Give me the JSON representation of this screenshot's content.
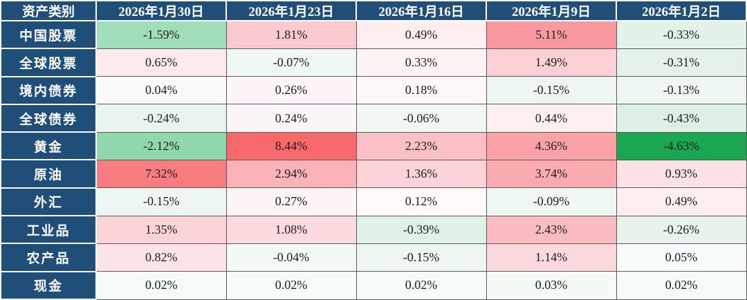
{
  "table": {
    "header": {
      "asset_class_label": "资产类别",
      "dates": [
        "2026年1月30日",
        "2026年1月23日",
        "2026年1月16日",
        "2026年1月9日",
        "2026年1月2日"
      ]
    },
    "rows": [
      {
        "label": "中国股票",
        "cells": [
          {
            "value": "-1.59%",
            "bg": "#a0ddb9"
          },
          {
            "value": "1.81%",
            "bg": "#fbcace"
          },
          {
            "value": "0.49%",
            "bg": "#feeef0"
          },
          {
            "value": "5.11%",
            "bg": "#f9999f"
          },
          {
            "value": "-0.33%",
            "bg": "#e3f2e8"
          }
        ]
      },
      {
        "label": "全球股票",
        "cells": [
          {
            "value": "0.65%",
            "bg": "#fdeaec"
          },
          {
            "value": "-0.07%",
            "bg": "#f0f8f3"
          },
          {
            "value": "0.33%",
            "bg": "#fef4f5"
          },
          {
            "value": "1.49%",
            "bg": "#fbd1d5"
          },
          {
            "value": "-0.31%",
            "bg": "#e4f2e9"
          }
        ]
      },
      {
        "label": "境内债券",
        "cells": [
          {
            "value": "0.04%",
            "bg": "#f8fbf9"
          },
          {
            "value": "0.26%",
            "bg": "#fdf5f6"
          },
          {
            "value": "0.18%",
            "bg": "#fef8f9"
          },
          {
            "value": "-0.15%",
            "bg": "#edf6f0"
          },
          {
            "value": "-0.13%",
            "bg": "#eef6f1"
          }
        ]
      },
      {
        "label": "全球债券",
        "cells": [
          {
            "value": "-0.24%",
            "bg": "#e8f4ed"
          },
          {
            "value": "0.24%",
            "bg": "#fdf6f7"
          },
          {
            "value": "-0.06%",
            "bg": "#f1f8f3"
          },
          {
            "value": "0.44%",
            "bg": "#feeff1"
          },
          {
            "value": "-0.43%",
            "bg": "#def0e5"
          }
        ]
      },
      {
        "label": "黄金",
        "cells": [
          {
            "value": "-2.12%",
            "bg": "#90d7ac"
          },
          {
            "value": "8.44%",
            "bg": "#f8696b"
          },
          {
            "value": "2.23%",
            "bg": "#fbc0c5"
          },
          {
            "value": "4.36%",
            "bg": "#f9a3a9"
          },
          {
            "value": "-4.63%",
            "bg": "#1ba750"
          }
        ]
      },
      {
        "label": "原油",
        "cells": [
          {
            "value": "7.32%",
            "bg": "#f87d80"
          },
          {
            "value": "2.94%",
            "bg": "#fab3b8"
          },
          {
            "value": "1.36%",
            "bg": "#fcd3d7"
          },
          {
            "value": "3.74%",
            "bg": "#f9abb0"
          },
          {
            "value": "0.93%",
            "bg": "#fce2e5"
          }
        ]
      },
      {
        "label": "外汇",
        "cells": [
          {
            "value": "-0.15%",
            "bg": "#edf6f0"
          },
          {
            "value": "0.27%",
            "bg": "#fdf5f6"
          },
          {
            "value": "0.12%",
            "bg": "#fefafa"
          },
          {
            "value": "-0.09%",
            "bg": "#eff7f2"
          },
          {
            "value": "0.49%",
            "bg": "#feeef0"
          }
        ]
      },
      {
        "label": "工业品",
        "cells": [
          {
            "value": "1.35%",
            "bg": "#fcd4d8"
          },
          {
            "value": "1.08%",
            "bg": "#fcdbde"
          },
          {
            "value": "-0.39%",
            "bg": "#e0f1e6"
          },
          {
            "value": "2.43%",
            "bg": "#fbbcc1"
          },
          {
            "value": "-0.26%",
            "bg": "#e7f3eb"
          }
        ]
      },
      {
        "label": "农产品",
        "cells": [
          {
            "value": "0.82%",
            "bg": "#fde4e7"
          },
          {
            "value": "-0.04%",
            "bg": "#f3f9f5"
          },
          {
            "value": "-0.15%",
            "bg": "#edf6f0"
          },
          {
            "value": "1.14%",
            "bg": "#fcd9dc"
          },
          {
            "value": "0.05%",
            "bg": "#f9fbfa"
          }
        ]
      },
      {
        "label": "现金",
        "cells": [
          {
            "value": "0.02%",
            "bg": "#f6faf8"
          },
          {
            "value": "0.02%",
            "bg": "#f6faf8"
          },
          {
            "value": "0.02%",
            "bg": "#f6faf8"
          },
          {
            "value": "0.03%",
            "bg": "#f5faf7"
          },
          {
            "value": "0.02%",
            "bg": "#f6faf8"
          }
        ]
      }
    ]
  },
  "colors": {
    "header_bg": "#1F4E79",
    "header_text": "#ffffff",
    "grid_line": "#595959",
    "cell_text": "#1c1c1c",
    "positive_max": "#f8696b",
    "negative_max": "#1ba750",
    "midpoint": "#ffffff"
  },
  "chart_data": {
    "type": "heatmap",
    "title": "",
    "row_label_header": "资产类别",
    "columns": [
      "2026年1月30日",
      "2026年1月23日",
      "2026年1月16日",
      "2026年1月9日",
      "2026年1月2日"
    ],
    "rows": [
      "中国股票",
      "全球股票",
      "境内债券",
      "全球债券",
      "黄金",
      "原油",
      "外汇",
      "工业品",
      "农产品",
      "现金"
    ],
    "values_pct": [
      [
        -1.59,
        1.81,
        0.49,
        5.11,
        -0.33
      ],
      [
        0.65,
        -0.07,
        0.33,
        1.49,
        -0.31
      ],
      [
        0.04,
        0.26,
        0.18,
        -0.15,
        -0.13
      ],
      [
        -0.24,
        0.24,
        -0.06,
        0.44,
        -0.43
      ],
      [
        -2.12,
        8.44,
        2.23,
        4.36,
        -4.63
      ],
      [
        7.32,
        2.94,
        1.36,
        3.74,
        0.93
      ],
      [
        -0.15,
        0.27,
        0.12,
        -0.09,
        0.49
      ],
      [
        1.35,
        1.08,
        -0.39,
        2.43,
        -0.26
      ],
      [
        0.82,
        -0.04,
        -0.15,
        1.14,
        0.05
      ],
      [
        0.02,
        0.02,
        0.02,
        0.03,
        0.02
      ]
    ],
    "color_scale": {
      "positive_max": "#f8696b",
      "midpoint": "#ffffff",
      "negative_max": "#1ba750"
    },
    "legend_position": "none",
    "grid": true
  }
}
